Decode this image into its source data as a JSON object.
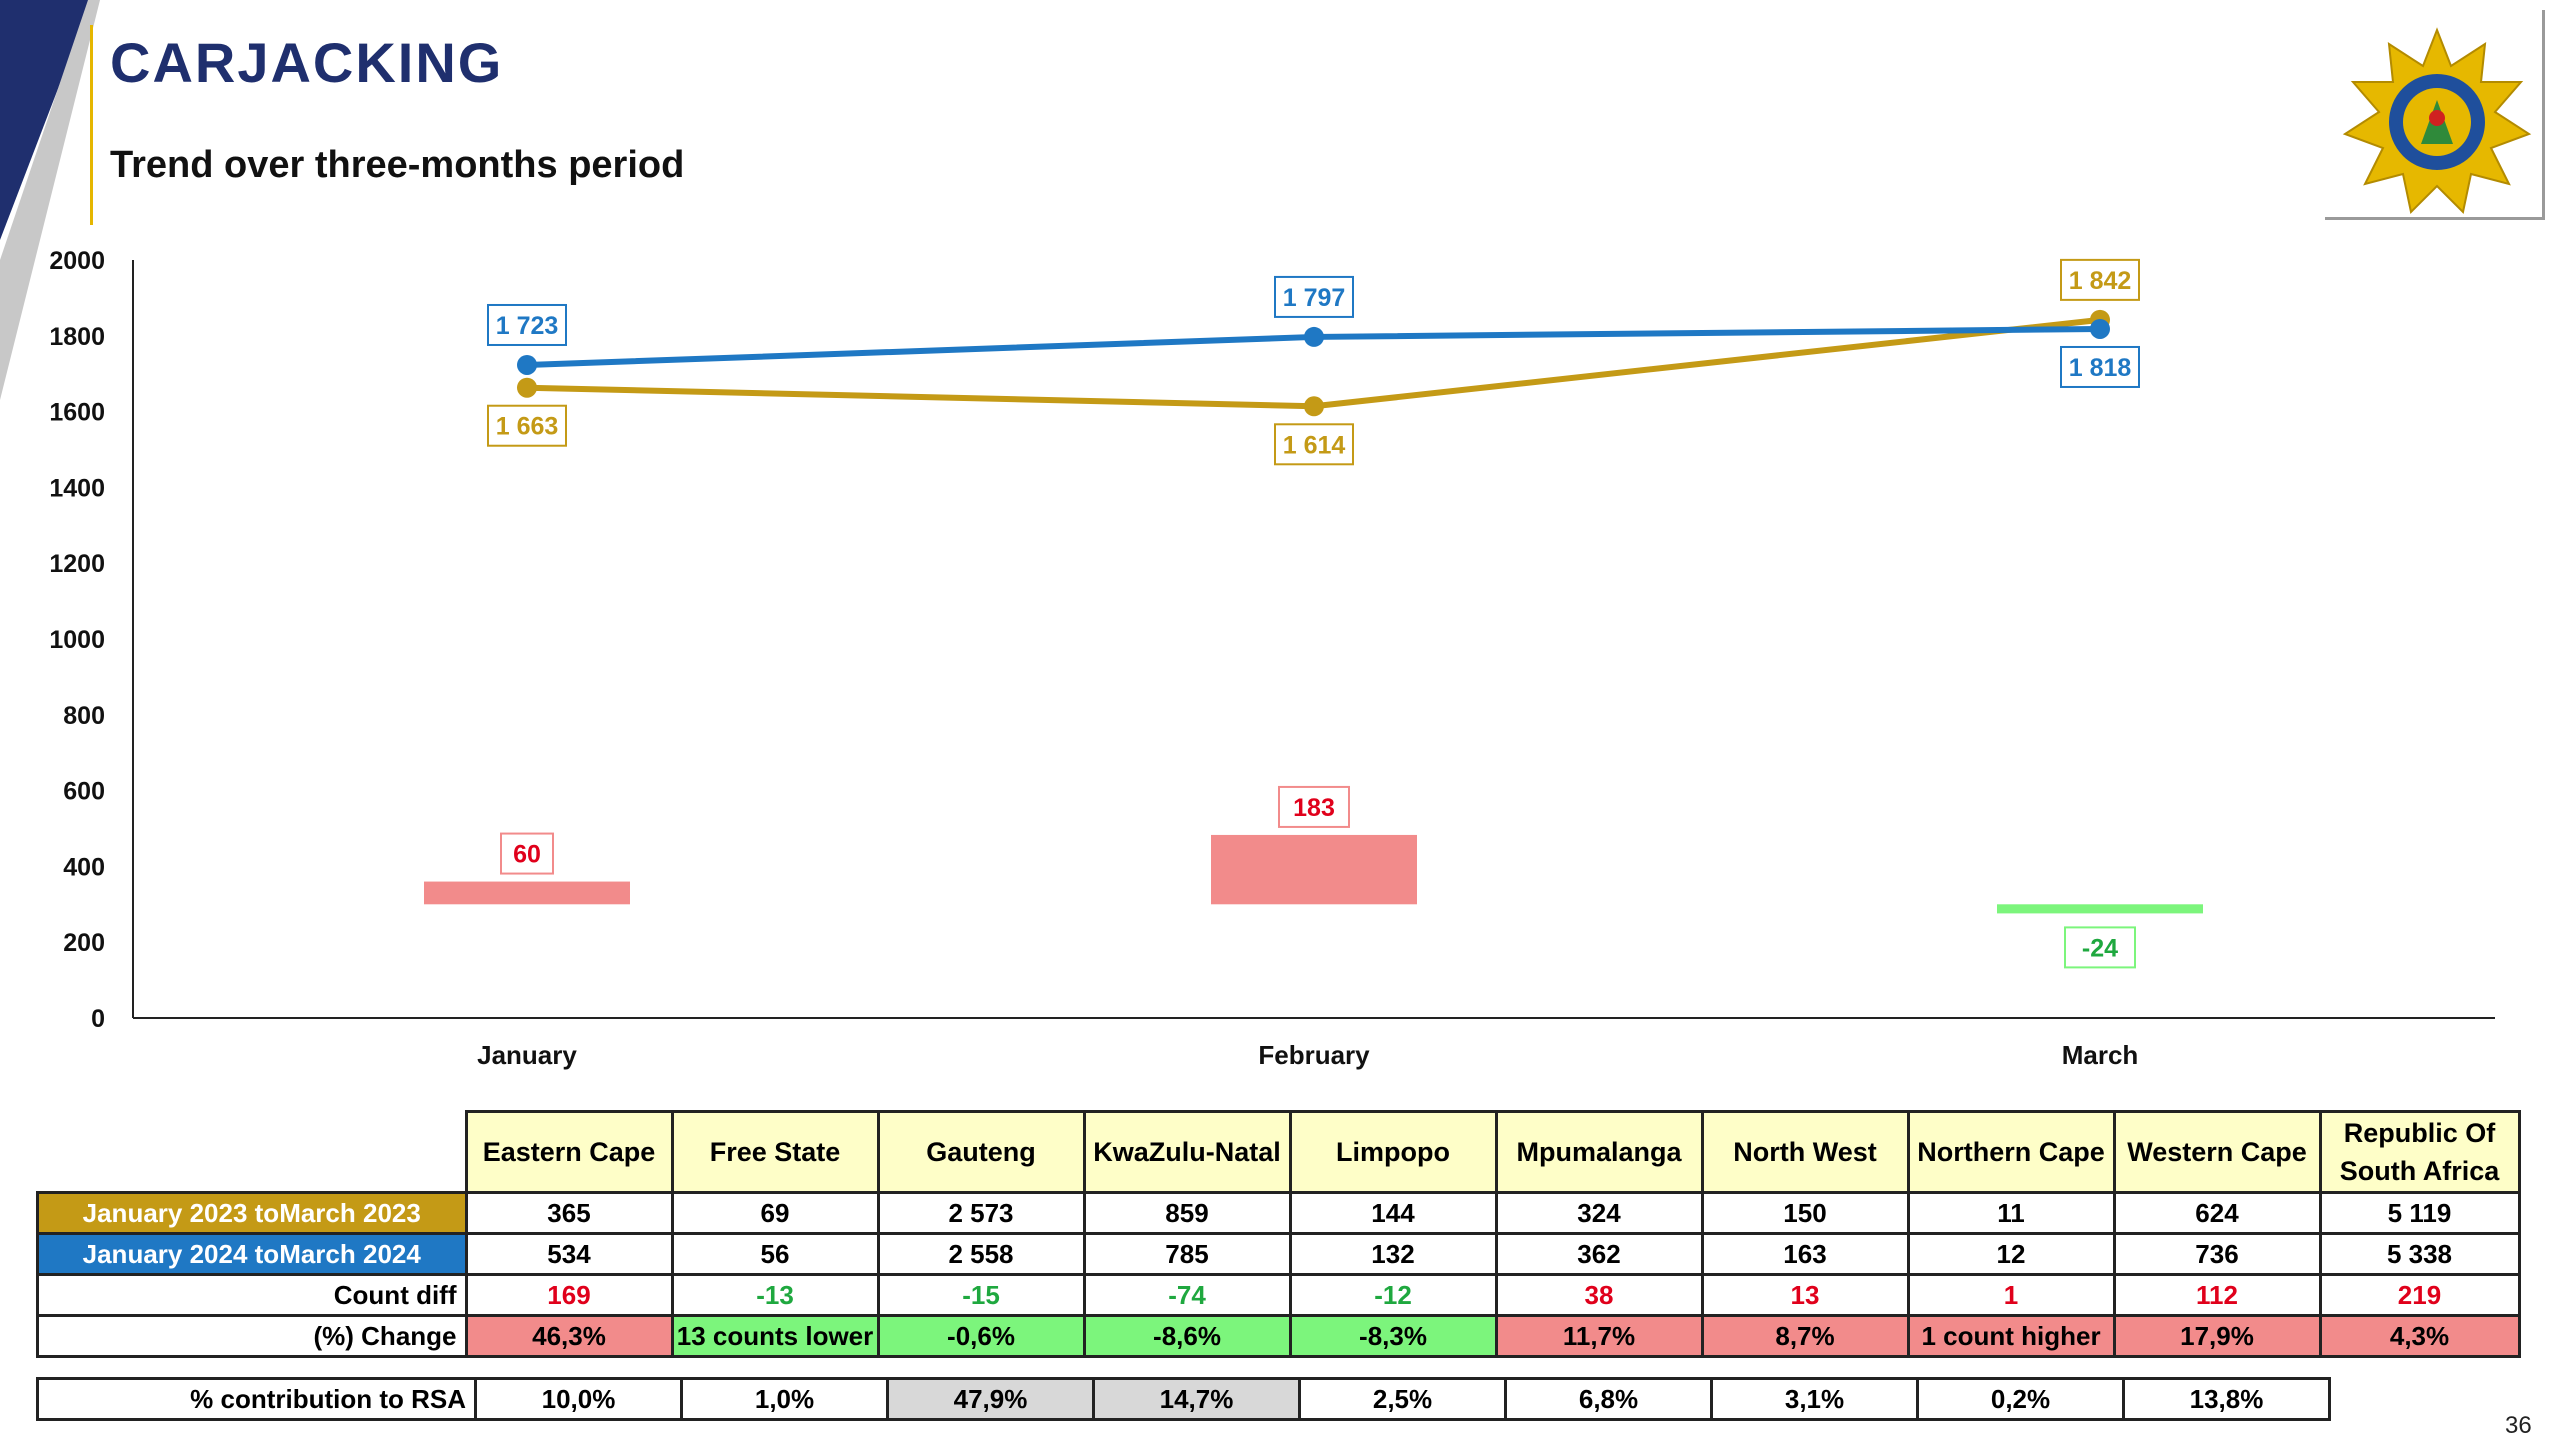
{
  "title": "CARJACKING",
  "subtitle": "Trend over three-months period",
  "page_number": "36",
  "colors": {
    "series_2023": "#c49a16",
    "series_2024": "#1f78c4",
    "increase": "#f28b8b",
    "decrease": "#7cf57c",
    "title": "#1f2f6e"
  },
  "icons": {
    "logo": "saps-star-badge-icon"
  },
  "chart_data": {
    "type": "line",
    "categories": [
      "January",
      "February",
      "March"
    ],
    "ylim": [
      0,
      2000
    ],
    "y_ticks": [
      "2000",
      "1800",
      "1600",
      "1400",
      "1200",
      "1000",
      "800",
      "600",
      "400",
      "200",
      "0"
    ],
    "grid": false,
    "series": [
      {
        "values": [
          1663,
          1614,
          1842
        ],
        "labels": [
          "1 663",
          "1 614",
          "1 842"
        ],
        "color": "#c49a16"
      },
      {
        "values": [
          1723,
          1797,
          1818
        ],
        "labels": [
          "1 723",
          "1 797",
          "1 818"
        ],
        "color": "#1f78c4"
      }
    ],
    "difference": {
      "type": "bar",
      "values": [
        60,
        183,
        -24
      ],
      "labels": [
        "60",
        "183",
        "-24"
      ]
    }
  },
  "table": {
    "headers": [
      "Eastern Cape",
      "Free State",
      "Gauteng",
      "KwaZulu-Natal",
      "Limpopo",
      "Mpumalanga",
      "North West",
      "Northern Cape",
      "Western Cape"
    ],
    "header_rsa_line1": "Republic Of",
    "header_rsa_line2": "South Africa",
    "rows": [
      {
        "label": "January 2023 toMarch 2023",
        "values": [
          "365",
          "69",
          "2 573",
          "859",
          "144",
          "324",
          "150",
          "11",
          "624",
          "5 119"
        ]
      },
      {
        "label": "January 2024 toMarch 2024",
        "values": [
          "534",
          "56",
          "2 558",
          "785",
          "132",
          "362",
          "163",
          "12",
          "736",
          "5 338"
        ]
      },
      {
        "label": "Count diff",
        "values": [
          "169",
          "-13",
          "-15",
          "-74",
          "-12",
          "38",
          "13",
          "1",
          "112",
          "219"
        ]
      },
      {
        "label": "(%) Change",
        "values": [
          "46,3%",
          "13 counts lower",
          "-0,6%",
          "-8,6%",
          "-8,3%",
          "11,7%",
          "8,7%",
          "1 count higher",
          "17,9%",
          "4,3%"
        ]
      }
    ],
    "contribution": {
      "label": "% contribution to RSA",
      "values": [
        "10,0%",
        "1,0%",
        "47,9%",
        "14,7%",
        "2,5%",
        "6,8%",
        "3,1%",
        "0,2%",
        "13,8%"
      ]
    }
  }
}
